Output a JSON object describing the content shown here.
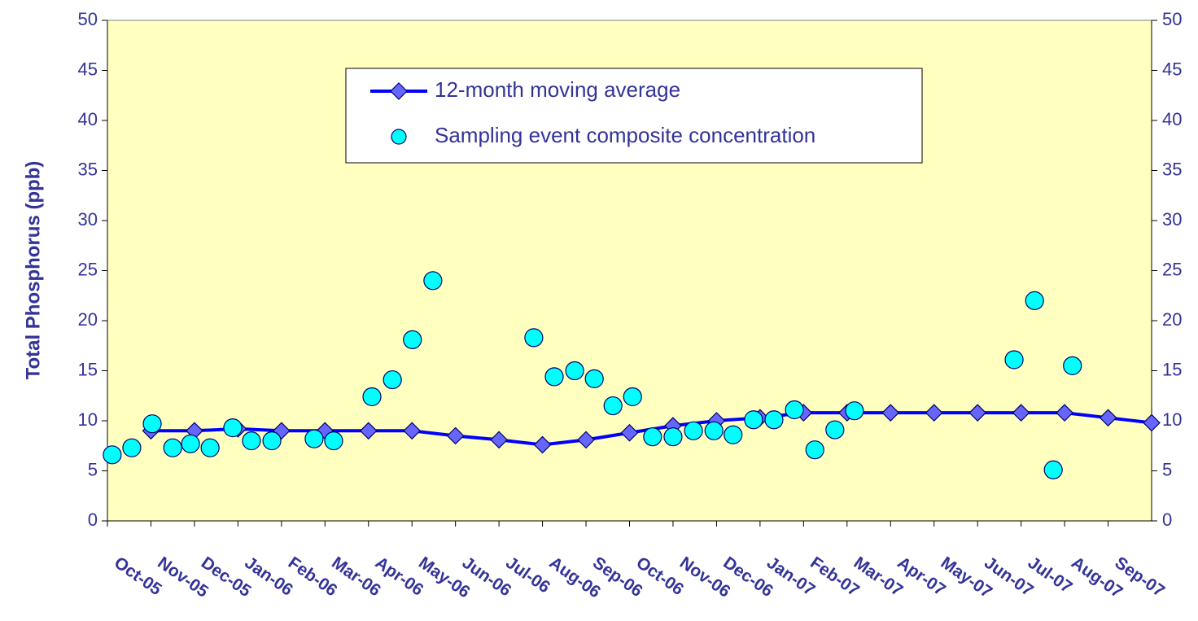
{
  "chart_data": {
    "type": "line",
    "ylabel": "Total Phosphorus (ppb)",
    "xlim": [
      0,
      24
    ],
    "xticks": [
      {
        "value": 0,
        "label": "Oct-05"
      },
      {
        "value": 1,
        "label": "Nov-05"
      },
      {
        "value": 2,
        "label": "Dec-05"
      },
      {
        "value": 3,
        "label": "Jan-06"
      },
      {
        "value": 4,
        "label": "Feb-06"
      },
      {
        "value": 5,
        "label": "Mar-06"
      },
      {
        "value": 6,
        "label": "Apr-06"
      },
      {
        "value": 7,
        "label": "May-06"
      },
      {
        "value": 8,
        "label": "Jun-06"
      },
      {
        "value": 9,
        "label": "Jul-06"
      },
      {
        "value": 10,
        "label": "Aug-06"
      },
      {
        "value": 11,
        "label": "Sep-06"
      },
      {
        "value": 12,
        "label": "Oct-06"
      },
      {
        "value": 13,
        "label": "Nov-06"
      },
      {
        "value": 14,
        "label": "Dec-06"
      },
      {
        "value": 15,
        "label": "Jan-07"
      },
      {
        "value": 16,
        "label": "Feb-07"
      },
      {
        "value": 17,
        "label": "Mar-07"
      },
      {
        "value": 18,
        "label": "Apr-07"
      },
      {
        "value": 19,
        "label": "May-07"
      },
      {
        "value": 20,
        "label": "Jun-07"
      },
      {
        "value": 21,
        "label": "Jul-07"
      },
      {
        "value": 22,
        "label": "Aug-07"
      },
      {
        "value": 23,
        "label": "Sep-07"
      }
    ],
    "ylim": [
      0,
      50
    ],
    "yticks": [
      0,
      5,
      10,
      15,
      20,
      25,
      30,
      35,
      40,
      45,
      50
    ],
    "y2lim": [
      0,
      50
    ],
    "y2ticks": [
      0,
      5,
      10,
      15,
      20,
      25,
      30,
      35,
      40,
      45,
      50
    ],
    "background": "#ffffc0",
    "series": [
      {
        "name": "12-month moving average",
        "mode": "line-markers",
        "color": "#0000ff",
        "marker_color": "#6666ff",
        "x": [
          1,
          2,
          3,
          4,
          5,
          6,
          7,
          8,
          9,
          10,
          11,
          12,
          13,
          14,
          15,
          16,
          17,
          18,
          19,
          20,
          21,
          22,
          23,
          24
        ],
        "values": [
          9,
          9,
          9.2,
          9,
          9,
          9,
          9,
          8.5,
          8.1,
          7.6,
          8.1,
          8.8,
          9.5,
          10,
          10.3,
          10.8,
          10.8,
          10.8,
          10.8,
          10.8,
          10.8,
          10.8,
          10.3,
          9.8
        ]
      },
      {
        "name": "Sampling event composite concentration",
        "mode": "markers",
        "color": "#00ffff",
        "x": [
          0.11,
          0.56,
          1.03,
          1.5,
          1.91,
          2.36,
          2.88,
          3.31,
          3.78,
          4.75,
          5.2,
          6.08,
          6.55,
          7.01,
          7.48,
          9.8,
          10.27,
          10.74,
          11.19,
          11.62,
          12.07,
          12.53,
          13.0,
          13.47,
          13.94,
          14.38,
          14.85,
          15.32,
          15.79,
          16.26,
          16.72,
          17.17,
          20.84,
          21.31,
          21.74,
          22.18
        ],
        "values": [
          6.6,
          7.3,
          9.7,
          7.3,
          7.7,
          7.3,
          9.3,
          8.0,
          8.0,
          8.2,
          8.0,
          12.4,
          14.1,
          18.1,
          24.0,
          18.3,
          14.4,
          15.0,
          14.2,
          11.5,
          12.4,
          8.4,
          8.4,
          9.0,
          9.0,
          8.6,
          10.1,
          10.1,
          11.1,
          7.1,
          9.1,
          11.0,
          16.1,
          22.0,
          5.1,
          15.5
        ]
      }
    ]
  }
}
